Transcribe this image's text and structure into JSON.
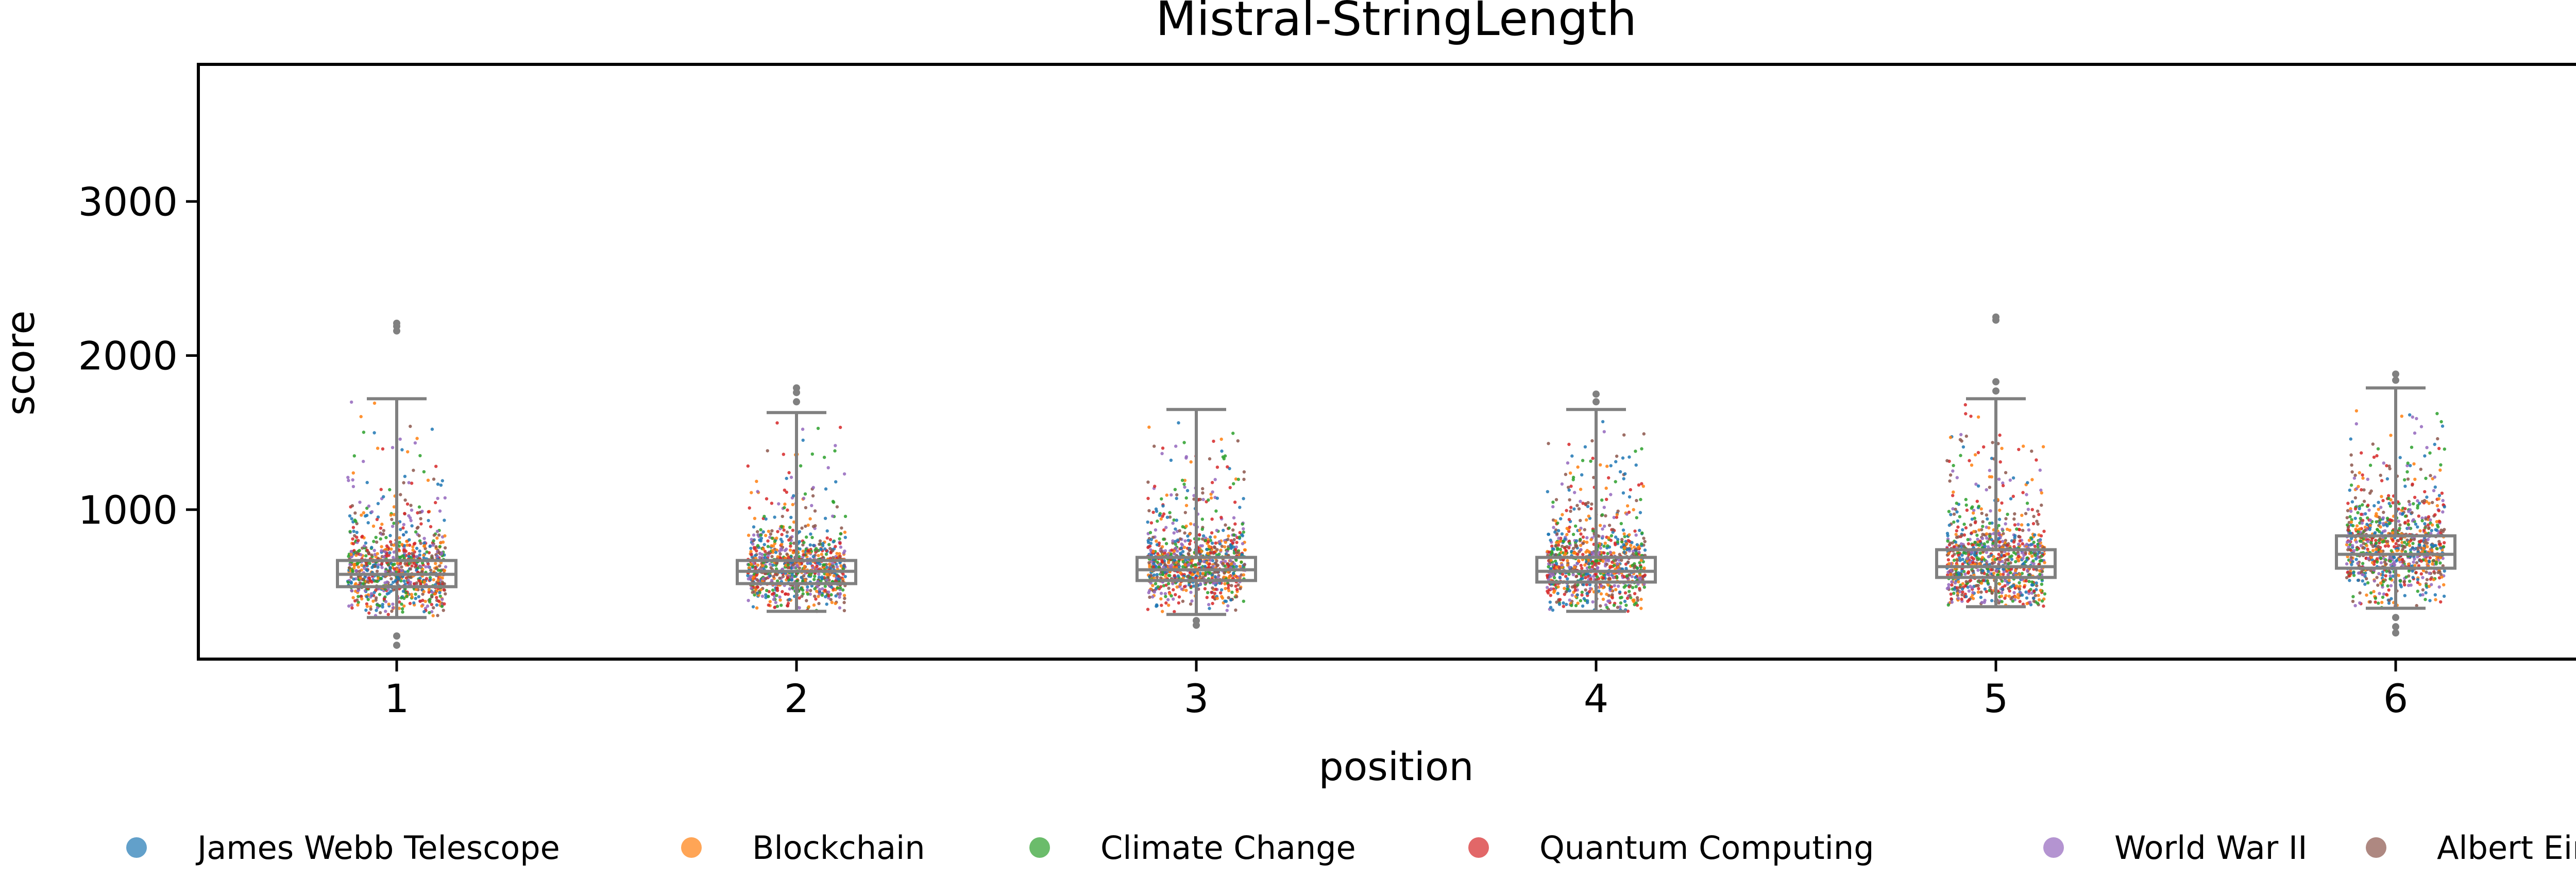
{
  "chart_data": {
    "type": "box",
    "title": "Mistral-StringLength",
    "xlabel": "position",
    "ylabel": "score",
    "categories": [
      "1",
      "2",
      "3",
      "4",
      "5",
      "6"
    ],
    "ylim": [
      30,
      3890
    ],
    "yticks": [
      1000,
      2000,
      3000
    ],
    "grid": false,
    "legend": "bottom",
    "series": [
      {
        "name": "James Webb Telescope",
        "color": "#1f77b4"
      },
      {
        "name": "Blockchain",
        "color": "#ff7f0e"
      },
      {
        "name": "Climate Change",
        "color": "#2ca02c"
      },
      {
        "name": "Quantum Computing",
        "color": "#d62728"
      },
      {
        "name": "World War II",
        "color": "#9467bd"
      },
      {
        "name": "Albert Einstein",
        "color": "#8c564b"
      }
    ],
    "boxes": [
      {
        "position": "1",
        "q1": 500,
        "median": 580,
        "q3": 670,
        "whisker_low": 300,
        "whisker_high": 1720,
        "outliers": [
          2160,
          2190,
          2210,
          180,
          120
        ]
      },
      {
        "position": "2",
        "q1": 520,
        "median": 600,
        "q3": 670,
        "whisker_low": 340,
        "whisker_high": 1630,
        "outliers": [
          1700,
          1760,
          1790
        ]
      },
      {
        "position": "3",
        "q1": 540,
        "median": 610,
        "q3": 690,
        "whisker_low": 320,
        "whisker_high": 1650,
        "outliers": [
          280,
          250
        ]
      },
      {
        "position": "4",
        "q1": 530,
        "median": 600,
        "q3": 690,
        "whisker_low": 340,
        "whisker_high": 1650,
        "outliers": [
          1700,
          1750
        ]
      },
      {
        "position": "5",
        "q1": 560,
        "median": 630,
        "q3": 740,
        "whisker_low": 370,
        "whisker_high": 1720,
        "outliers": [
          1770,
          1830,
          2230,
          2250
        ]
      },
      {
        "position": "6",
        "q1": 620,
        "median": 710,
        "q3": 830,
        "whisker_low": 360,
        "whisker_high": 1790,
        "outliers": [
          1840,
          1880,
          300,
          240,
          200
        ]
      }
    ]
  }
}
